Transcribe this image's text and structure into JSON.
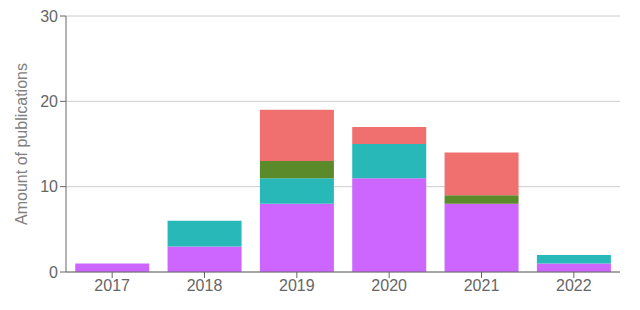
{
  "chart_data": {
    "type": "bar",
    "stacked": true,
    "categories": [
      "2017",
      "2018",
      "2019",
      "2020",
      "2021",
      "2022"
    ],
    "series": [
      {
        "color": "#CC66FF",
        "values": [
          1,
          3,
          8,
          11,
          8,
          1
        ]
      },
      {
        "color": "#29B8B8",
        "values": [
          0,
          3,
          3,
          4,
          0,
          1
        ]
      },
      {
        "color": "#5A8A2A",
        "values": [
          0,
          0,
          2,
          0,
          1,
          0
        ]
      },
      {
        "color": "#F07070",
        "values": [
          0,
          0,
          6,
          2,
          5,
          0
        ]
      }
    ],
    "ylabel": "Amount of publications",
    "ylim": [
      0,
      30
    ],
    "yticks": [
      0,
      10,
      20,
      30
    ],
    "grid": true
  }
}
